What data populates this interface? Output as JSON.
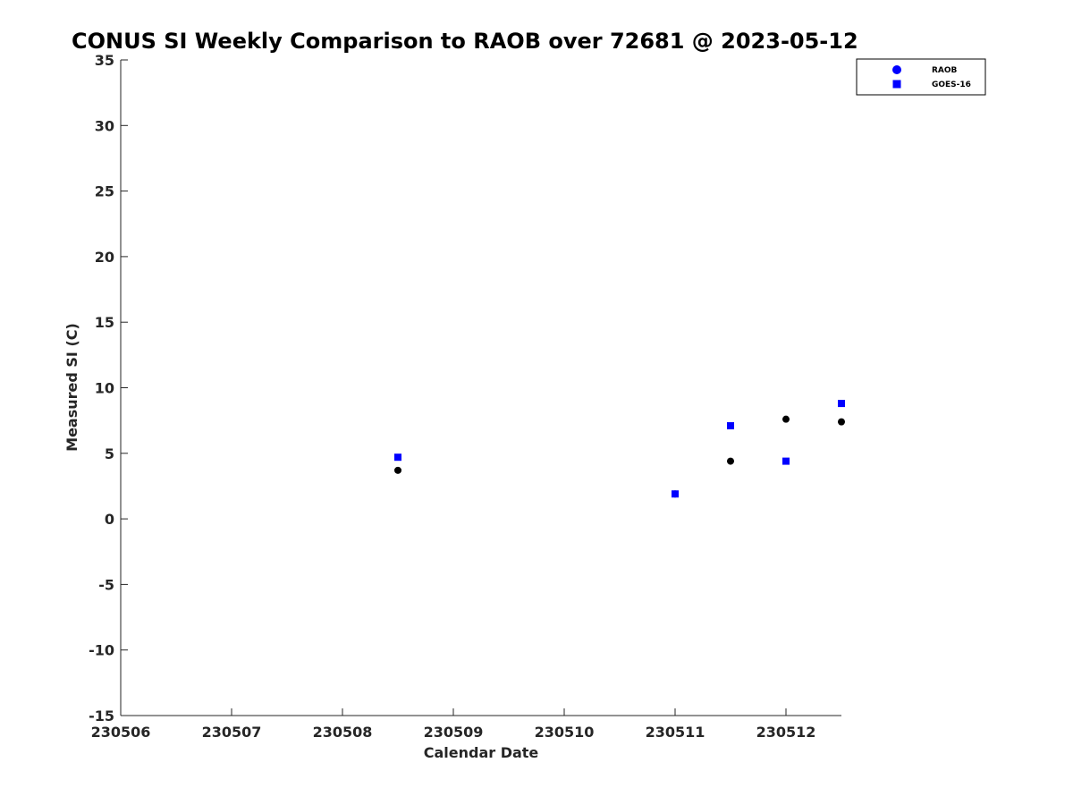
{
  "chart_data": {
    "type": "scatter",
    "title": "CONUS SI Weekly Comparison to RAOB over 72681 @ 2023-05-12",
    "xlabel": "Calendar Date",
    "ylabel": "Measured SI (C)",
    "xlim": [
      230506,
      230512.5
    ],
    "ylim": [
      -15,
      35
    ],
    "xticks": [
      230506,
      230507,
      230508,
      230509,
      230510,
      230511,
      230512
    ],
    "xtick_labels": [
      "230506",
      "230507",
      "230508",
      "230509",
      "230510",
      "230511",
      "230512"
    ],
    "yticks": [
      -15,
      -10,
      -5,
      0,
      5,
      10,
      15,
      20,
      25,
      30,
      35
    ],
    "ytick_labels": [
      "-15",
      "-10",
      "-5",
      "0",
      "5",
      "10",
      "15",
      "20",
      "25",
      "30",
      "35"
    ],
    "grid": false,
    "legend_position": "top-right",
    "series": [
      {
        "name": "RAOB",
        "marker": "circle",
        "legend_color": "#0000ff",
        "color": "#000000",
        "x": [
          230508.5,
          230511,
          230511.5,
          230512,
          230512.5
        ],
        "y": [
          3.7,
          1.9,
          4.4,
          7.6,
          7.4
        ]
      },
      {
        "name": "GOES-16",
        "marker": "square",
        "legend_color": "#0000ff",
        "color": "#0000ff",
        "x": [
          230508.5,
          230511,
          230511.5,
          230512,
          230512.5
        ],
        "y": [
          4.7,
          1.9,
          7.1,
          4.4,
          8.8
        ]
      }
    ]
  }
}
